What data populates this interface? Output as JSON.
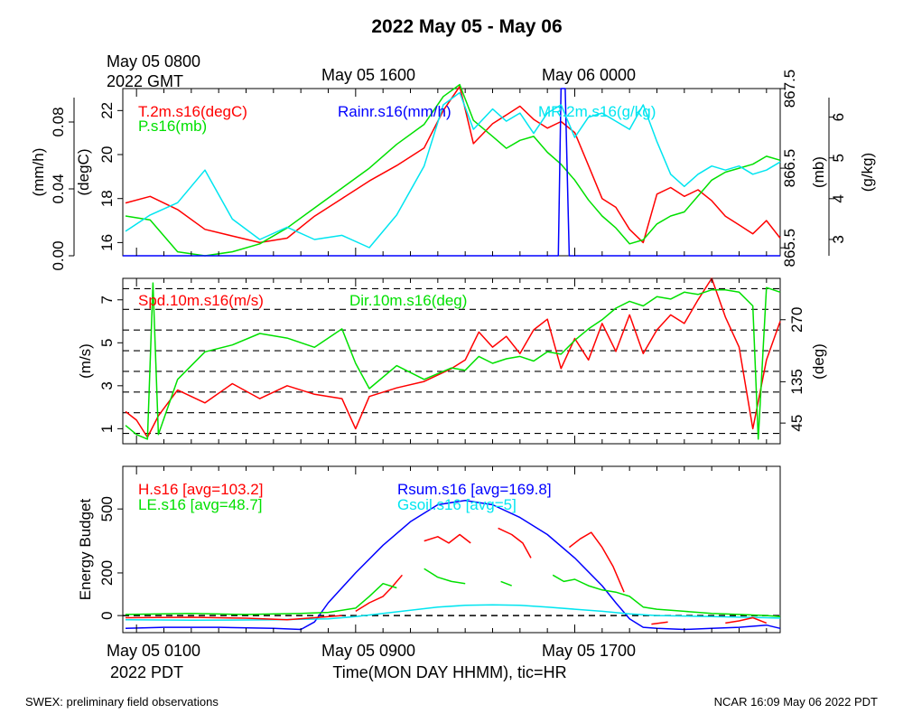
{
  "title": "2022 May 05 - May 06",
  "footer_left": "SWEX: preliminary field observations",
  "footer_right": "NCAR 16:09 May 06 2022 PDT",
  "top_axis": {
    "first_label_line1": "May 05 0800",
    "first_label_line2": "2022 GMT",
    "labels": [
      "May 05 1600",
      "May 06 0000"
    ]
  },
  "bottom_axis": {
    "first_label_line1": "May 05 0100",
    "first_label_line2": "2022 PDT",
    "labels": [
      "May 05 0900",
      "May 05 1700"
    ],
    "xlabel": "Time(MON DAY HHMM), tic=HR"
  },
  "colors": {
    "red": "#ff0000",
    "green": "#00e000",
    "blue": "#0000ff",
    "cyan": "#00e5f0",
    "black": "#000000"
  },
  "chart_data": [
    {
      "type": "line",
      "panel": "top",
      "x_unit": "hours since May 05 0000 PDT",
      "xlim": [
        0.5,
        24.5
      ],
      "legend": [
        {
          "text": "T.2m.s16(degC)",
          "color": "#ff0000"
        },
        {
          "text": "P.s16(mb)",
          "color": "#00e000"
        },
        {
          "text": "Rainr.s16(mm/h)",
          "color": "#0000ff"
        },
        {
          "text": "MR.2m.s16(g/kg)",
          "color": "#00e5f0"
        }
      ],
      "axes": [
        {
          "label": "(mm/h)",
          "side": "left",
          "ticks": [
            "0.00",
            "0.04",
            "0.08"
          ],
          "ylim": [
            0,
            0.1
          ]
        },
        {
          "label": "(degC)",
          "side": "left",
          "ticks": [
            "16",
            "18",
            "20",
            "22"
          ],
          "ylim": [
            15.4,
            23
          ]
        },
        {
          "label": "(mb)",
          "side": "right",
          "ticks": [
            "865.5",
            "866.5",
            "867.5"
          ],
          "ylim": [
            865.4,
            867.5
          ]
        },
        {
          "label": "(g/kg)",
          "side": "right",
          "ticks": [
            "3",
            "4",
            "5",
            "6"
          ],
          "ylim": [
            2.6,
            6.7
          ]
        }
      ],
      "series": [
        {
          "name": "T.2m.s16(degC)",
          "color": "#ff0000",
          "axis": 1,
          "x": [
            0.6,
            1.5,
            2.5,
            3.5,
            4.5,
            5.5,
            6.5,
            7.5,
            8.5,
            9.5,
            10.5,
            11.5,
            12.2,
            12.8,
            13.3,
            14,
            14.5,
            15,
            15.5,
            16,
            16.5,
            17,
            17.5,
            18,
            18.5,
            19,
            19.5,
            20,
            20.5,
            21,
            21.5,
            22,
            22.5,
            23,
            23.5,
            24,
            24.5
          ],
          "values": [
            17.8,
            18.1,
            17.5,
            16.6,
            16.3,
            16.0,
            16.2,
            17.2,
            18.0,
            18.8,
            19.5,
            20.3,
            22.0,
            23.1,
            20.5,
            21.4,
            21.8,
            22.2,
            21.6,
            21.2,
            21.5,
            21.0,
            19.5,
            18.0,
            17.6,
            16.6,
            16.0,
            18.2,
            18.5,
            18.1,
            18.4,
            17.9,
            17.2,
            16.8,
            16.4,
            17.0,
            16.2
          ]
        },
        {
          "name": "P.s16(mb)",
          "color": "#00e000",
          "axis": 2,
          "x": [
            0.6,
            1.5,
            2.5,
            3.5,
            4.5,
            5.5,
            6.5,
            7.5,
            8.5,
            9.5,
            10.5,
            11.5,
            12.2,
            12.8,
            13.3,
            14,
            14.5,
            15,
            15.5,
            16,
            16.5,
            17,
            17.5,
            18,
            18.5,
            19,
            19.5,
            20,
            20.5,
            21,
            21.5,
            22,
            22.5,
            23,
            23.5,
            24,
            24.5
          ],
          "values": [
            865.9,
            865.85,
            865.45,
            865.4,
            865.45,
            865.55,
            865.75,
            866.0,
            866.25,
            866.5,
            866.8,
            867.05,
            867.4,
            867.55,
            867.1,
            866.9,
            866.75,
            866.85,
            866.9,
            866.7,
            866.55,
            866.35,
            866.1,
            865.9,
            865.75,
            865.55,
            865.6,
            865.8,
            865.9,
            865.95,
            866.15,
            866.35,
            866.45,
            866.5,
            866.55,
            866.65,
            866.6
          ]
        },
        {
          "name": "Rainr.s16(mm/h)",
          "color": "#0000ff",
          "axis": 0,
          "x": [
            0.5,
            16.4,
            16.5,
            16.65,
            16.8,
            24.5
          ],
          "values": [
            0,
            0,
            0.1,
            0.1,
            0,
            0
          ]
        },
        {
          "name": "MR.2m.s16(g/kg)",
          "color": "#00e5f0",
          "axis": 3,
          "x": [
            0.6,
            1.5,
            2.5,
            3.5,
            4.5,
            5.5,
            6.5,
            7.5,
            8.5,
            9.5,
            10.5,
            11.5,
            12.2,
            12.8,
            13.3,
            14,
            14.5,
            15,
            15.5,
            16,
            16.5,
            17,
            17.5,
            18,
            18.5,
            19,
            19.5,
            20,
            20.5,
            21,
            21.5,
            22,
            22.5,
            23,
            23.5,
            24,
            24.5
          ],
          "values": [
            3.2,
            3.6,
            3.9,
            4.7,
            3.5,
            3.0,
            3.3,
            3.0,
            3.1,
            2.8,
            3.6,
            4.8,
            6.3,
            6.6,
            5.7,
            6.2,
            5.9,
            6.1,
            5.6,
            6.1,
            6.3,
            5.5,
            6.0,
            6.1,
            5.9,
            5.7,
            6.3,
            5.4,
            4.6,
            4.3,
            4.6,
            4.8,
            4.7,
            4.8,
            4.6,
            4.7,
            4.9
          ]
        }
      ]
    },
    {
      "type": "line",
      "panel": "middle",
      "x_unit": "hours since May 05 0000 PDT",
      "xlim": [
        0.5,
        24.5
      ],
      "legend": [
        {
          "text": "Spd.10m.s16(m/s)",
          "color": "#ff0000"
        },
        {
          "text": "Dir.10m.s16(deg)",
          "color": "#00e000"
        }
      ],
      "axes": [
        {
          "label": "(m/s)",
          "side": "left",
          "ticks": [
            "1",
            "3",
            "5",
            "7"
          ],
          "ylim": [
            0.3,
            8
          ]
        },
        {
          "label": "(deg)",
          "side": "right",
          "ticks": [
            "45",
            "135",
            "270"
          ],
          "ylim": [
            0,
            360
          ]
        }
      ],
      "dashed_lines_deg": [
        22.5,
        67.5,
        112.5,
        157.5,
        202.5,
        247.5,
        292.5,
        337.5
      ],
      "series": [
        {
          "name": "Spd.10m.s16(m/s)",
          "color": "#ff0000",
          "axis": 0,
          "x": [
            0.6,
            1,
            1.4,
            1.8,
            2.5,
            3.5,
            4.5,
            5.5,
            6.5,
            7.5,
            8.5,
            9,
            9.5,
            10.5,
            11.5,
            12.5,
            13,
            13.5,
            14,
            14.5,
            15,
            15.5,
            16,
            16.5,
            17,
            17.5,
            18,
            18.5,
            19,
            19.5,
            20,
            20.5,
            21,
            21.5,
            22,
            22.5,
            23,
            23.5,
            24,
            24.5
          ],
          "values": [
            1.8,
            1.4,
            0.6,
            1.6,
            2.8,
            2.2,
            3.1,
            2.4,
            3.0,
            2.6,
            2.4,
            1.0,
            2.5,
            2.9,
            3.2,
            3.8,
            4.2,
            5.5,
            4.8,
            5.3,
            4.5,
            5.6,
            6.1,
            3.8,
            5.2,
            4.2,
            5.9,
            4.6,
            6.3,
            4.5,
            5.6,
            6.3,
            5.9,
            7.0,
            8.0,
            6.2,
            4.8,
            1.0,
            4.2,
            6.0
          ]
        },
        {
          "name": "Dir.10m.s16(deg)",
          "color": "#00e000",
          "axis": 1,
          "x": [
            0.6,
            1,
            1.4,
            1.6,
            1.8,
            2.5,
            3.5,
            4.5,
            5.5,
            6.5,
            7.5,
            8.5,
            9,
            9.5,
            10.5,
            11.5,
            12.5,
            13,
            13.5,
            14,
            14.5,
            15,
            15.5,
            16,
            16.5,
            17,
            17.5,
            18,
            18.5,
            19,
            19.5,
            20,
            20.5,
            21,
            21.5,
            22,
            22.5,
            23,
            23.5,
            23.7,
            24,
            24.5
          ],
          "values": [
            40,
            20,
            10,
            350,
            20,
            140,
            200,
            215,
            240,
            230,
            210,
            250,
            175,
            120,
            170,
            140,
            165,
            160,
            190,
            175,
            185,
            190,
            180,
            200,
            195,
            225,
            250,
            270,
            295,
            310,
            300,
            320,
            315,
            330,
            325,
            335,
            335,
            330,
            300,
            10,
            340,
            330
          ]
        }
      ]
    },
    {
      "type": "line",
      "panel": "bottom",
      "x_unit": "hours since May 05 0000 PDT",
      "xlim": [
        0.5,
        24.5
      ],
      "ylabel": "Energy Budget",
      "ylim": [
        -80,
        700
      ],
      "yticks": [
        "0",
        "200",
        "500"
      ],
      "legend": [
        {
          "text": "H.s16 [avg=103.2]",
          "color": "#ff0000"
        },
        {
          "text": "LE.s16 [avg=48.7]",
          "color": "#00e000"
        },
        {
          "text": "Rsum.s16 [avg=169.8]",
          "color": "#0000ff"
        },
        {
          "text": "Gsoil.s16 [avg=5]",
          "color": "#00e5f0"
        }
      ],
      "series": [
        {
          "name": "Rsum.s16 [avg=169.8]",
          "color": "#0000ff",
          "segments": [
            {
              "x": [
                0.6,
                2,
                4,
                6,
                7,
                7.5,
                8,
                9,
                10,
                11,
                12,
                13,
                14,
                15,
                16,
                17,
                18,
                18.5,
                19,
                19.5,
                20,
                21,
                22,
                23,
                24,
                24.5
              ],
              "values": [
                -60,
                -55,
                -55,
                -60,
                -65,
                -30,
                60,
                200,
                330,
                440,
                520,
                540,
                520,
                460,
                380,
                270,
                140,
                60,
                -15,
                -55,
                -60,
                -65,
                -60,
                -55,
                -45,
                -60
              ]
            }
          ]
        },
        {
          "name": "Gsoil.s16 [avg=5]",
          "color": "#00e5f0",
          "segments": [
            {
              "x": [
                0.6,
                3,
                6,
                8,
                9,
                10,
                11,
                12,
                13,
                14,
                15,
                16,
                17,
                18,
                19,
                20,
                22,
                24,
                24.5
              ],
              "values": [
                -20,
                -22,
                -20,
                -15,
                -5,
                10,
                25,
                40,
                48,
                50,
                48,
                40,
                30,
                20,
                8,
                0,
                -5,
                -10,
                -12
              ]
            }
          ]
        },
        {
          "name": "H.s16 [avg=103.2]",
          "color": "#ff0000",
          "segments": [
            {
              "x": [
                0.6,
                3,
                5,
                6.5,
                7.5,
                8.5
              ],
              "values": [
                -10,
                -8,
                -12,
                -20,
                -10,
                0
              ]
            },
            {
              "x": [
                9,
                9.5,
                10,
                10.3,
                10.7
              ],
              "values": [
                20,
                60,
                90,
                130,
                190
              ]
            },
            {
              "x": [
                11.5,
                12,
                12.4,
                12.8,
                13.2
              ],
              "values": [
                350,
                370,
                340,
                380,
                340
              ]
            },
            {
              "x": [
                14.2,
                14.7,
                15.1,
                15.4
              ],
              "values": [
                410,
                380,
                340,
                270
              ]
            },
            {
              "x": [
                16.8,
                17.2,
                17.6,
                18,
                18.4,
                18.8
              ],
              "values": [
                320,
                360,
                390,
                320,
                230,
                110
              ]
            },
            {
              "x": [
                19.8,
                20.4
              ],
              "values": [
                -40,
                -30
              ]
            },
            {
              "x": [
                22.5,
                23,
                23.5,
                24
              ],
              "values": [
                -35,
                -25,
                -10,
                -35
              ]
            }
          ]
        },
        {
          "name": "LE.s16 [avg=48.7]",
          "color": "#00e000",
          "segments": [
            {
              "x": [
                0.6,
                3,
                5,
                7,
                8,
                9,
                9.5,
                10,
                10.5
              ],
              "values": [
                5,
                10,
                5,
                10,
                15,
                35,
                90,
                150,
                130
              ]
            },
            {
              "x": [
                11.5,
                12,
                12.5,
                13
              ],
              "values": [
                220,
                180,
                160,
                150
              ]
            },
            {
              "x": [
                14.3,
                14.7
              ],
              "values": [
                160,
                140
              ]
            },
            {
              "x": [
                16.2,
                16.6,
                17,
                17.5,
                18,
                18.5,
                19,
                19.5,
                20,
                21,
                22,
                23,
                24,
                24.5
              ],
              "values": [
                190,
                160,
                170,
                140,
                120,
                110,
                90,
                40,
                30,
                20,
                10,
                5,
                0,
                -5
              ]
            }
          ]
        }
      ]
    }
  ]
}
